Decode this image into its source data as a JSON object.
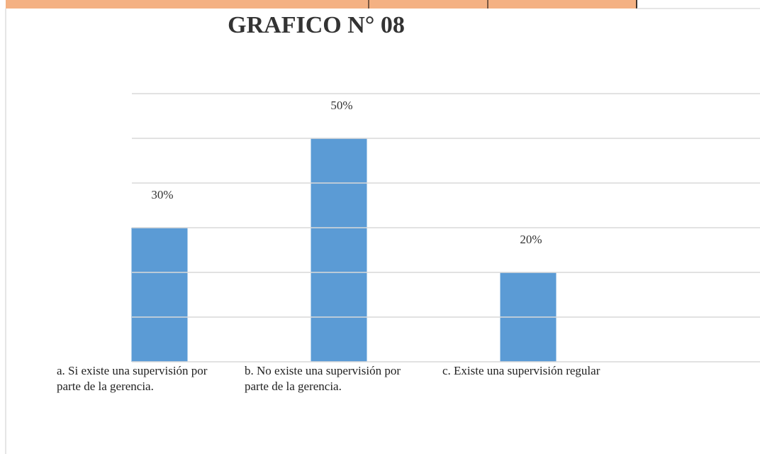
{
  "chart_data": {
    "type": "bar",
    "title": "GRAFICO N° 08",
    "categories": [
      "a. Si existe una supervisión por parte de la gerencia.",
      "b. No existe una supervisión por parte de la gerencia.",
      "c. Existe una supervisión regular"
    ],
    "values": [
      30,
      50,
      20
    ],
    "value_labels": [
      "30%",
      "50%",
      "20%"
    ],
    "color": "#5b9bd5",
    "ylim": [
      0,
      60
    ],
    "yticks": [
      0,
      10,
      20,
      30,
      40,
      50,
      60
    ],
    "grid": true
  }
}
